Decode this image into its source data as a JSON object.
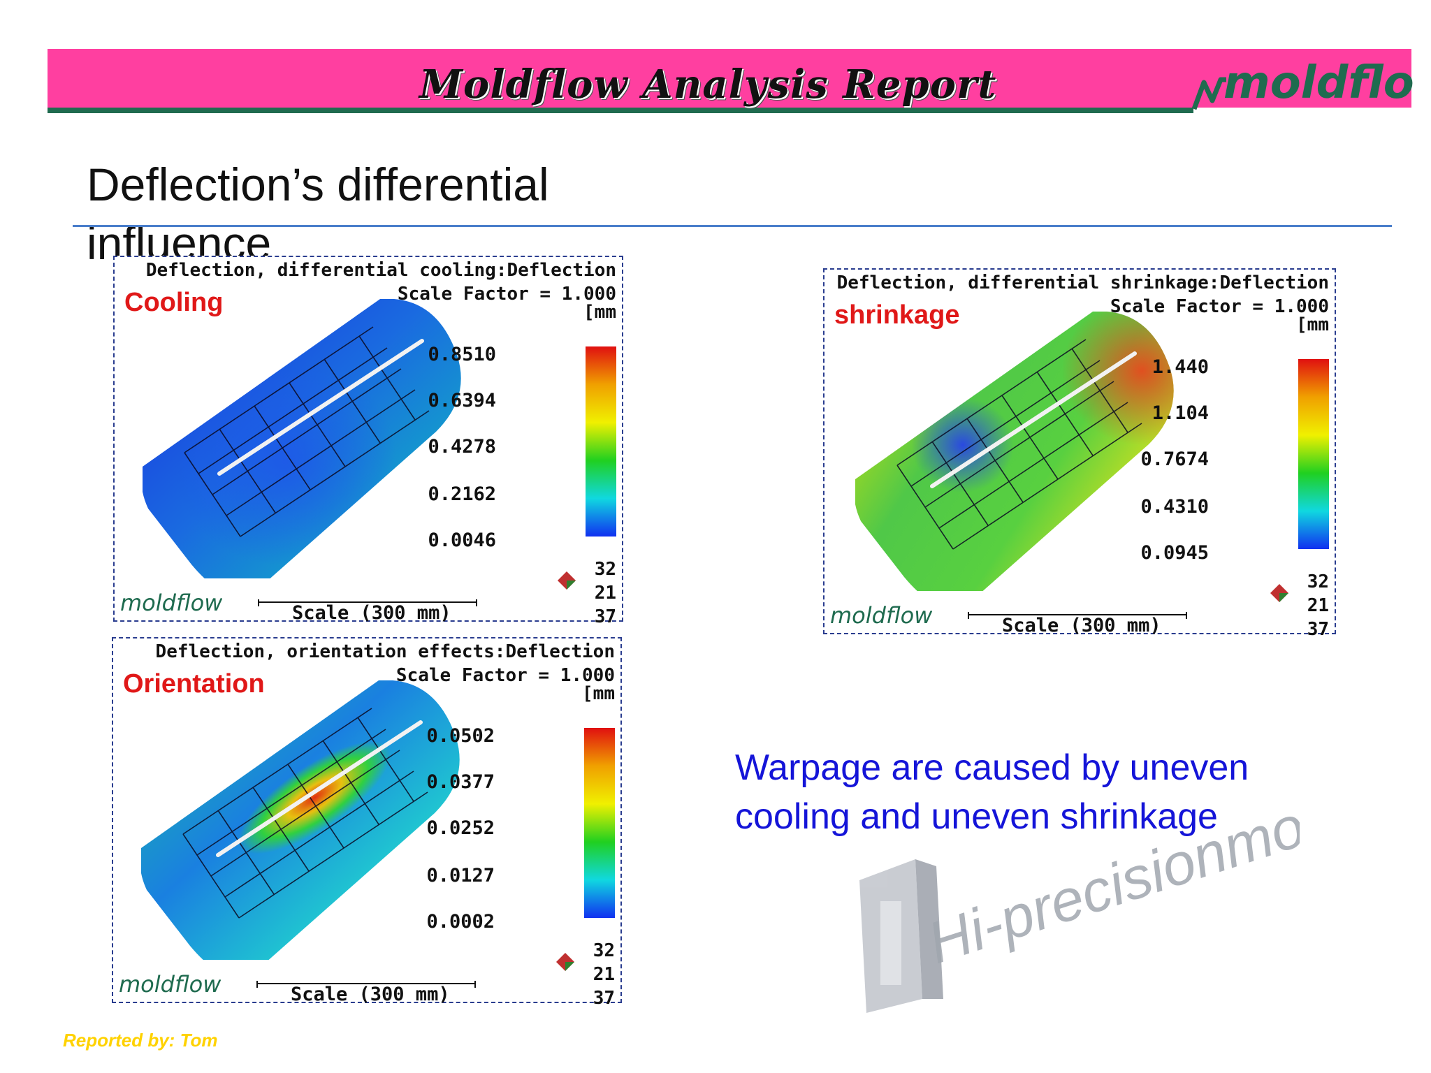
{
  "header": {
    "title": "Moldflow Analysis Report",
    "logo_text": "moldflow",
    "colors": {
      "band": "#ff3fa0",
      "underline": "#1f6b4f"
    }
  },
  "slide_title": "Deflection’s differential influence",
  "panels": {
    "cooling": {
      "title": "Deflection, differential cooling:Deflection",
      "scale_factor": "Scale Factor = 1.000",
      "unit": "[mm",
      "label": "Cooling",
      "legend_values": [
        "0.8510",
        "0.6394",
        "0.4278",
        "0.2162",
        "0.0046"
      ],
      "axes": [
        "32",
        "21",
        "37"
      ],
      "scale_text": "Scale (300 mm)",
      "logo_text": "moldflow"
    },
    "shrinkage": {
      "title": "Deflection, differential shrinkage:Deflection",
      "scale_factor": "Scale Factor = 1.000",
      "unit": "[mm",
      "label": "shrinkage",
      "legend_values": [
        "1.440",
        "1.104",
        "0.7674",
        "0.4310",
        "0.0945"
      ],
      "axes": [
        "32",
        "21",
        "37"
      ],
      "scale_text": "Scale (300 mm)",
      "logo_text": "moldflow"
    },
    "orientation": {
      "title": "Deflection, orientation effects:Deflection",
      "scale_factor": "Scale Factor = 1.000",
      "unit": "[mm",
      "label": "Orientation",
      "legend_values": [
        "0.0502",
        "0.0377",
        "0.0252",
        "0.0127",
        "0.0002"
      ],
      "axes": [
        "32",
        "21",
        "37"
      ],
      "scale_text": "Scale (300 mm)",
      "logo_text": "moldflow"
    }
  },
  "caption": "Warpage are caused by uneven cooling and uneven shrinkage",
  "watermark": "Hi-precisionmold.com",
  "footer": {
    "reported_by": "Reported by: Tom"
  }
}
